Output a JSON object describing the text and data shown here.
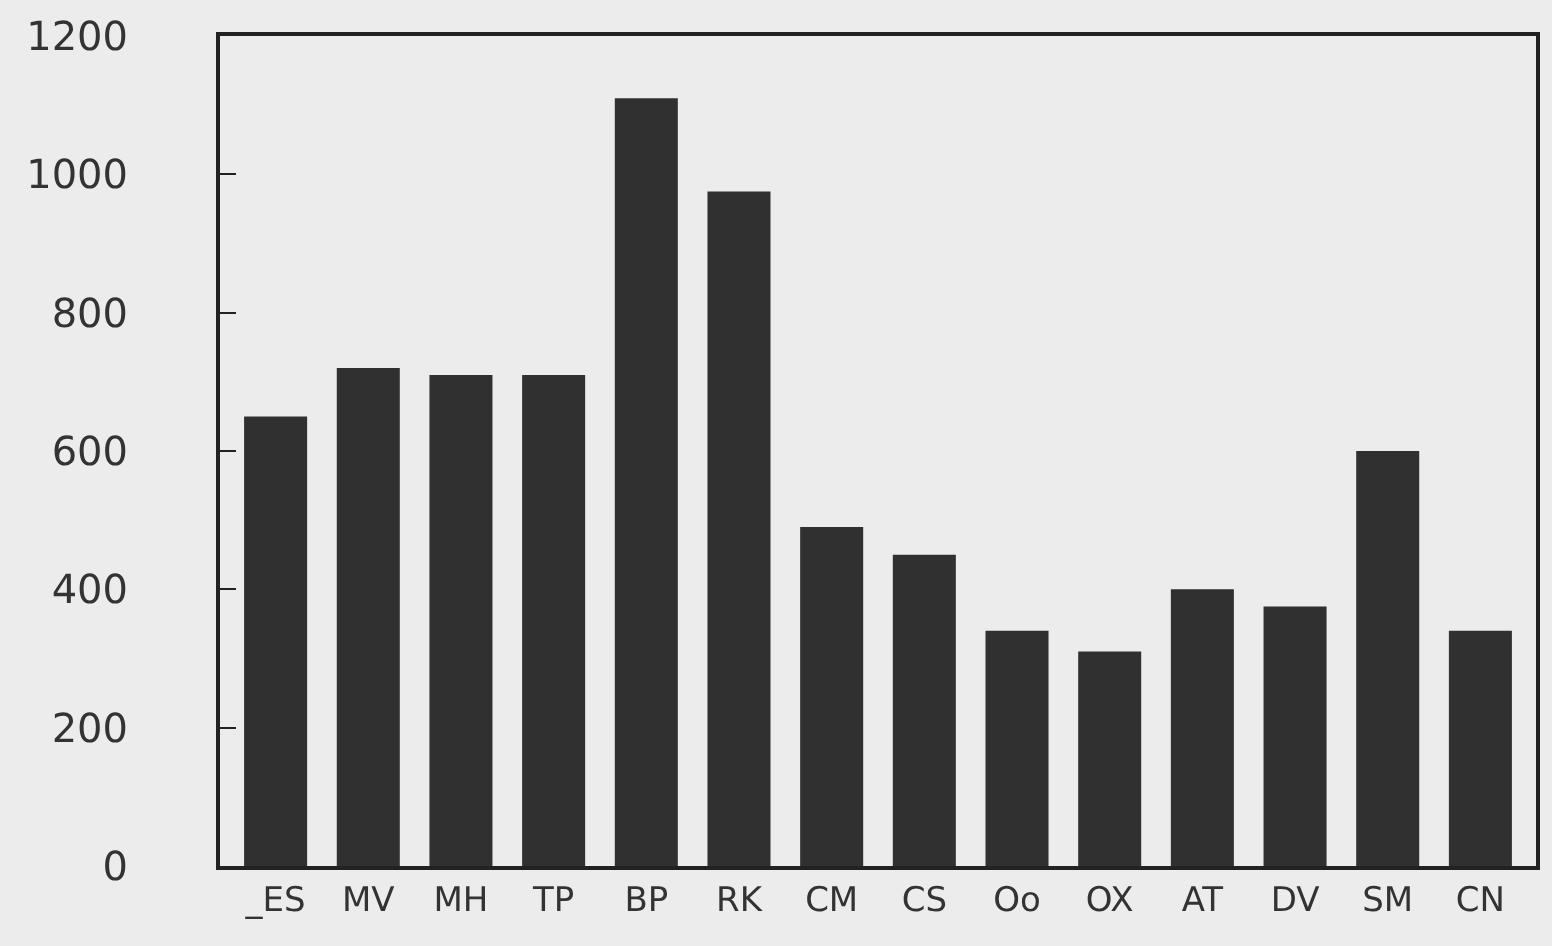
{
  "chart_data": {
    "type": "bar",
    "categories": [
      "_ES",
      "MV",
      "MH",
      "TP",
      "BP",
      "RK",
      "CM",
      "CS",
      "Oo",
      "OX",
      "AT",
      "DV",
      "SM",
      "CN"
    ],
    "values": [
      650,
      720,
      710,
      710,
      1110,
      975,
      490,
      450,
      340,
      310,
      400,
      375,
      600,
      340
    ],
    "color": "#303030",
    "ylim": [
      0,
      1200
    ],
    "yticks": [
      0,
      200,
      400,
      600,
      800,
      1000,
      1200
    ],
    "grid": false
  }
}
